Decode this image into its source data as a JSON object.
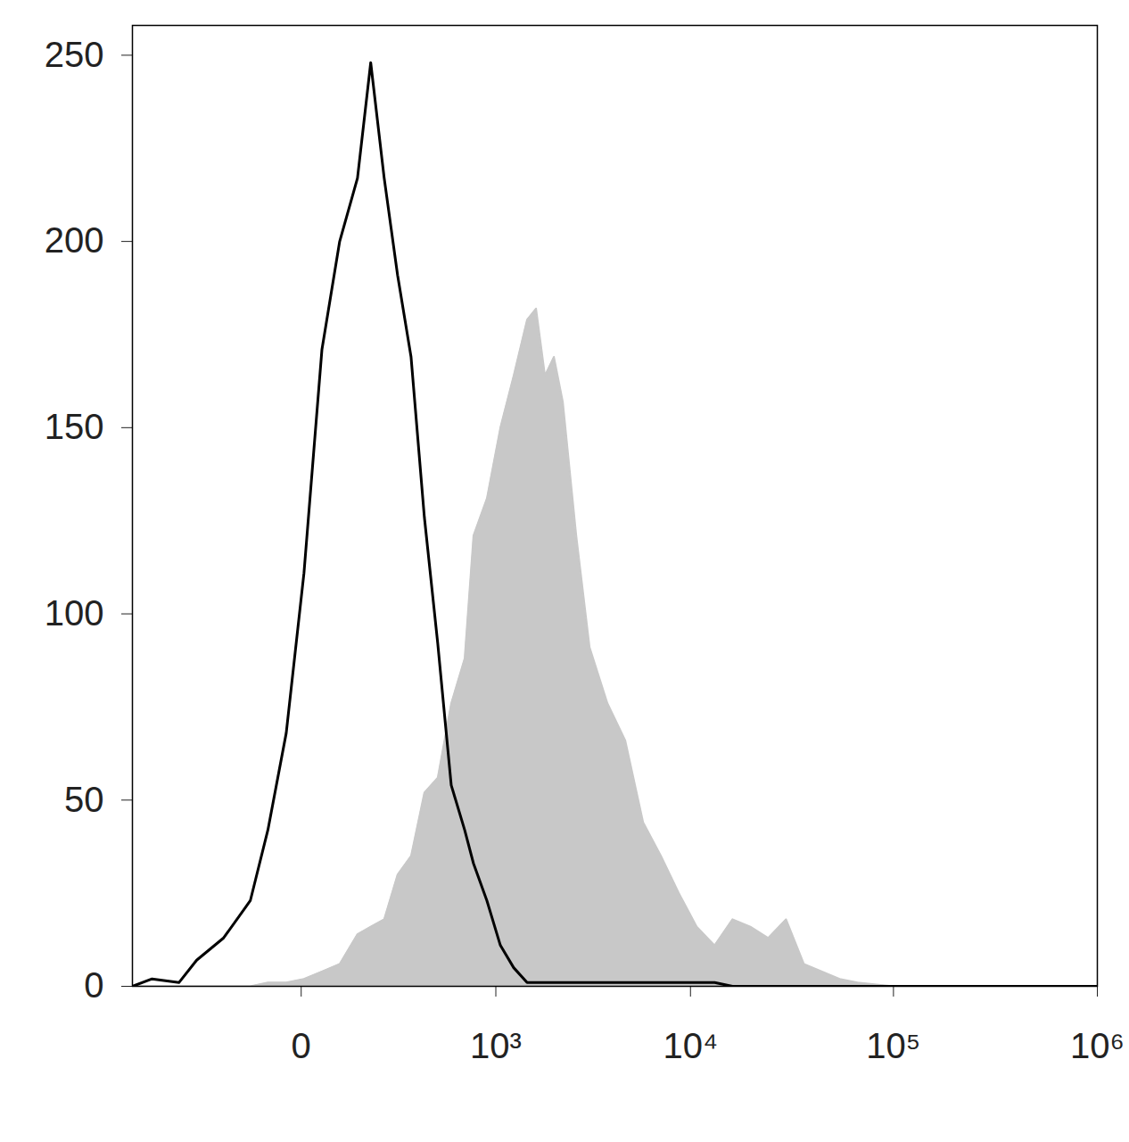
{
  "chart_data": {
    "type": "histogram",
    "x": [
      -715,
      -548,
      -372,
      -282,
      -175,
      -97,
      -57,
      -23,
      4,
      33,
      68,
      111,
      149,
      194,
      246,
      307,
      377,
      459,
      555,
      666,
      749,
      892,
      1059,
      1251,
      1476,
      1646,
      1834,
      2042,
      2271,
      2664,
      3118,
      3840,
      4725,
      5810,
      7135,
      8760,
      10740,
      13170,
      16150,
      19780,
      24230,
      29650,
      36290,
      54400,
      66600,
      99800,
      273600,
      1000000
    ],
    "series": [
      {
        "type": "area",
        "color": "#c8c8c8",
        "values": [
          0,
          0,
          0,
          0,
          0,
          0,
          1,
          1,
          2,
          4,
          6,
          14,
          16,
          18,
          30,
          35,
          52,
          56,
          76,
          88,
          121,
          131,
          150,
          164,
          179,
          182,
          164,
          169,
          157,
          121,
          91,
          76,
          66,
          44,
          35,
          25,
          16,
          11,
          18,
          16,
          13,
          18,
          6,
          2,
          1,
          0,
          0,
          0
        ]
      },
      {
        "type": "line",
        "color": "#000000",
        "values": [
          0,
          2,
          1,
          7,
          13,
          23,
          42,
          68,
          111,
          171,
          200,
          217,
          248,
          217,
          191,
          169,
          126,
          92,
          54,
          42,
          33,
          23,
          11,
          5,
          1,
          1,
          1,
          1,
          1,
          1,
          1,
          1,
          1,
          1,
          1,
          1,
          1,
          1,
          0,
          0,
          0,
          0,
          0,
          0,
          0,
          0,
          0,
          0
        ]
      }
    ],
    "log": "x",
    "xlim": [
      -715,
      1000000
    ],
    "xticks": [
      0,
      {
        "value": 1000,
        "label": "10³"
      },
      {
        "value": 10000,
        "label": "10⁴"
      },
      {
        "value": 100000,
        "label": "10⁵"
      },
      {
        "value": 1000000,
        "label": "10⁶"
      }
    ],
    "ylim": [
      0,
      258
    ],
    "yticks": [
      0,
      50,
      100,
      150,
      200,
      250
    ]
  }
}
